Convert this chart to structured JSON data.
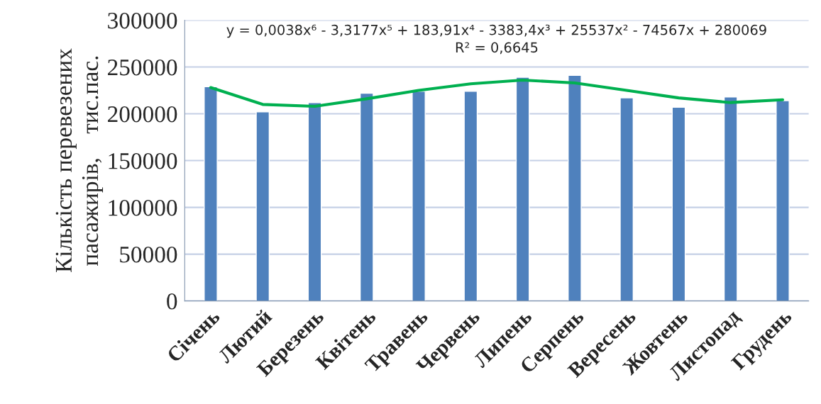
{
  "chart_data": {
    "type": "bar",
    "ylabel": "Кількість перевезених\nпасажирів,    тис.пас.",
    "categories": [
      "Січень",
      "Лютий",
      "Березень",
      "Квітень",
      "Травень",
      "Червень",
      "Липень",
      "Серпень",
      "Вересень",
      "Жовтень",
      "Листопад",
      "Грудень"
    ],
    "series": [
      {
        "color": "#4f81bd",
        "values": [
          229000,
          202000,
          212000,
          222000,
          224000,
          224000,
          239000,
          241000,
          217000,
          207000,
          218000,
          214000
        ]
      },
      {
        "type": "line",
        "color": "#00b050",
        "values": [
          228000,
          210000,
          208000,
          216000,
          225000,
          232000,
          236000,
          233000,
          225000,
          217000,
          212000,
          215000
        ]
      }
    ],
    "annotations": [
      "y = 0,0038x⁶ - 3,3177x⁵ + 183,91x⁴ - 3383,4x³ + 25537x² - 74567x + 280069\nR² = 0,6645"
    ],
    "ylim": [
      0,
      300000
    ],
    "yticks": [
      0,
      50000,
      100000,
      150000,
      200000,
      250000,
      300000
    ],
    "grid": "y",
    "legend": false
  }
}
